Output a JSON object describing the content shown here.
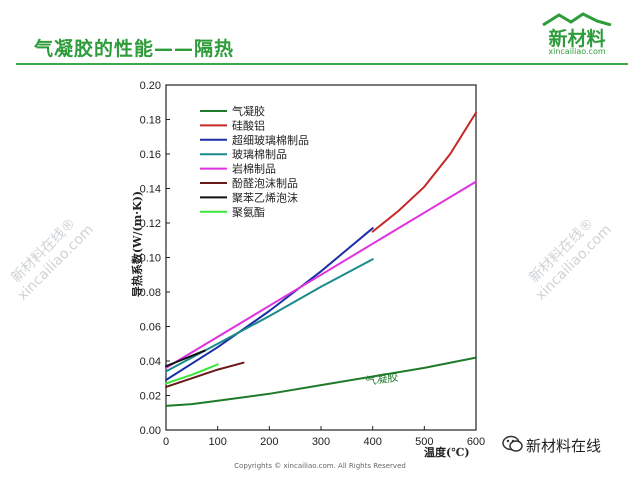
{
  "slide": {
    "title": "气凝胶的性能——隔热"
  },
  "logo": {
    "main": "新材料",
    "sub": "xincailiao.com"
  },
  "watermark": {
    "line1": "新材料在线®",
    "line2": "xincailiao.com"
  },
  "footer": {
    "copyright": "Copyrights © xincailiao.com. All Rights Reserved",
    "wechat": "新材料在线"
  },
  "chart_data": {
    "type": "line",
    "ylabel": "导热系数(W/(m·K))",
    "xlabel": "温度(℃)",
    "xlim": [
      0,
      600
    ],
    "ylim": [
      0,
      0.2
    ],
    "xticks": [
      "0",
      "100",
      "200",
      "300",
      "400",
      "500",
      "600"
    ],
    "yticks": [
      "0.00",
      "0.02",
      "0.04",
      "0.06",
      "0.08",
      "0.10",
      "0.12",
      "0.14",
      "0.16",
      "0.18",
      "0.20"
    ],
    "annotation": "气凝胶",
    "legend_position": "top-left",
    "series": [
      {
        "name": "气凝胶",
        "color": "#1f7a2a",
        "points": [
          [
            0,
            0.014
          ],
          [
            50,
            0.015
          ],
          [
            100,
            0.017
          ],
          [
            200,
            0.021
          ],
          [
            300,
            0.026
          ],
          [
            400,
            0.031
          ],
          [
            500,
            0.036
          ],
          [
            600,
            0.042
          ]
        ]
      },
      {
        "name": "硅酸铝",
        "color": "#c62828",
        "points": [
          [
            400,
            0.115
          ],
          [
            450,
            0.127
          ],
          [
            500,
            0.141
          ],
          [
            550,
            0.16
          ],
          [
            600,
            0.184
          ]
        ]
      },
      {
        "name": "超细玻璃棉制品",
        "color": "#1c2fa8",
        "points": [
          [
            0,
            0.029
          ],
          [
            100,
            0.048
          ],
          [
            200,
            0.069
          ],
          [
            300,
            0.092
          ],
          [
            400,
            0.117
          ]
        ]
      },
      {
        "name": "玻璃棉制品",
        "color": "#1b8a8a",
        "points": [
          [
            0,
            0.034
          ],
          [
            100,
            0.05
          ],
          [
            200,
            0.066
          ],
          [
            300,
            0.083
          ],
          [
            400,
            0.099
          ]
        ]
      },
      {
        "name": "岩棉制品",
        "color": "#e030e0",
        "points": [
          [
            0,
            0.036
          ],
          [
            100,
            0.054
          ],
          [
            200,
            0.072
          ],
          [
            300,
            0.09
          ],
          [
            400,
            0.108
          ],
          [
            500,
            0.126
          ],
          [
            600,
            0.144
          ]
        ]
      },
      {
        "name": "酚醛泡沫制品",
        "color": "#6b1a1a",
        "points": [
          [
            0,
            0.025
          ],
          [
            50,
            0.03
          ],
          [
            100,
            0.035
          ],
          [
            150,
            0.039
          ]
        ]
      },
      {
        "name": "聚苯乙烯泡沫",
        "color": "#111111",
        "points": [
          [
            0,
            0.037
          ],
          [
            25,
            0.04
          ],
          [
            50,
            0.043
          ],
          [
            75,
            0.046
          ]
        ]
      },
      {
        "name": "聚氨酯",
        "color": "#39e639",
        "points": [
          [
            0,
            0.027
          ],
          [
            50,
            0.032
          ],
          [
            100,
            0.038
          ]
        ]
      }
    ]
  }
}
